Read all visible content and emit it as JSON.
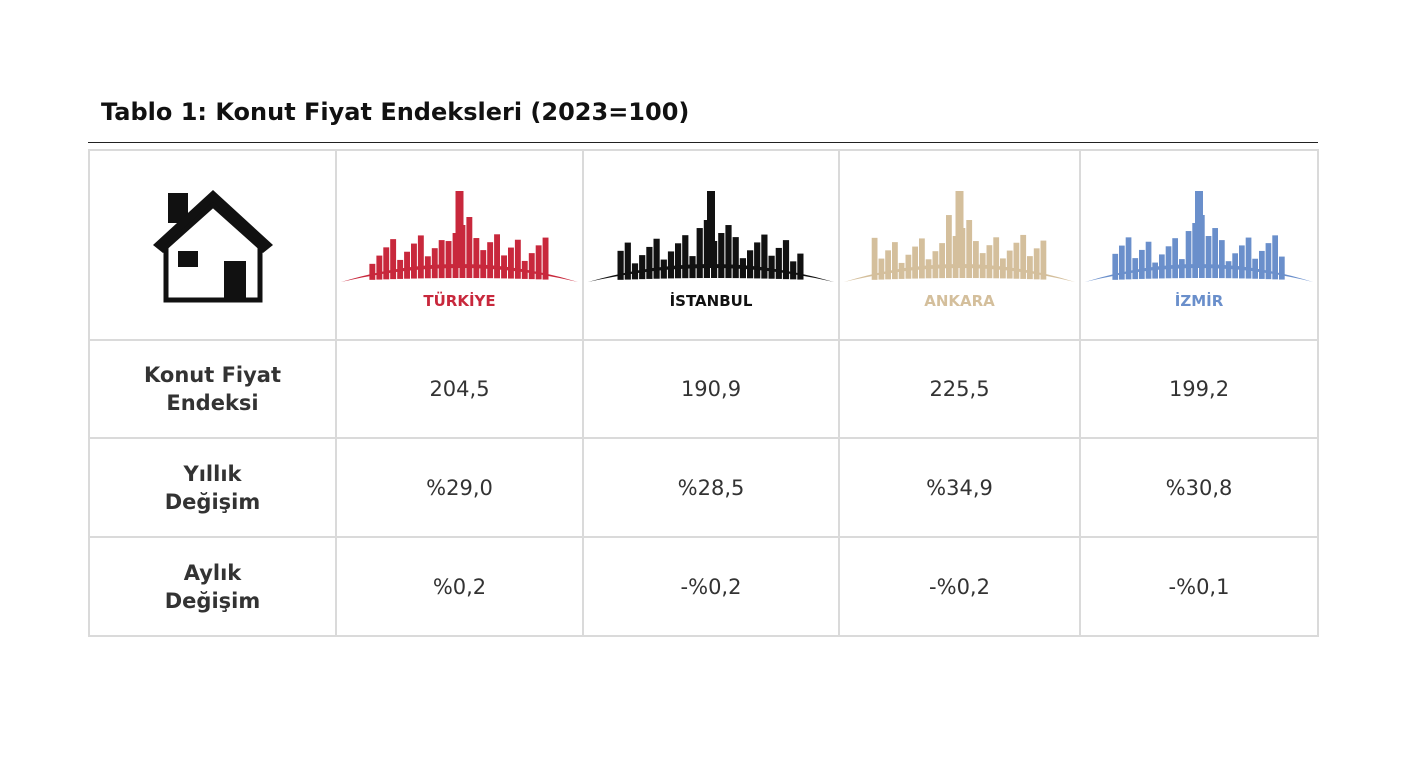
{
  "title": "Tablo 1: Konut Fiyat Endeksleri (2023=100)",
  "table": {
    "columns": [
      {
        "label": "TÜRKİYE",
        "color": "#c8283c"
      },
      {
        "label": "İSTANBUL",
        "color": "#111111"
      },
      {
        "label": "ANKARA",
        "color": "#d4bf9c"
      },
      {
        "label": "İZMİR",
        "color": "#6a8fcb"
      }
    ],
    "rows": [
      {
        "label": "Konut Fiyat Endeksi",
        "values": [
          "204,5",
          "190,9",
          "225,5",
          "199,2"
        ]
      },
      {
        "label": "Yıllık Değişim",
        "values": [
          "%29,0",
          "%28,5",
          "%34,9",
          "%30,8"
        ]
      },
      {
        "label": "Aylık Değişim",
        "values": [
          "%0,2",
          "-%0,2",
          "-%0,2",
          "-%0,1"
        ]
      }
    ]
  }
}
